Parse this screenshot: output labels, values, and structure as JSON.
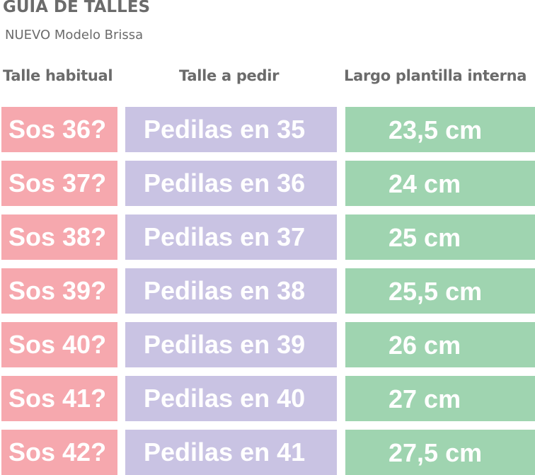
{
  "header": {
    "title": "GUIA DE TALLES",
    "subtitle": "NUEVO Modelo Brissa"
  },
  "columns": {
    "habitual": "Talle habitual",
    "pedir": "Talle a pedir",
    "largo": "Largo plantilla interna"
  },
  "colors": {
    "habitual": "#f6a8ae",
    "pedir": "#c9c3e3",
    "largo": "#9fd4b0",
    "header_text": "#6b6b6b",
    "cell_text": "#ffffff"
  },
  "rows": [
    {
      "habitual": "Sos 36?",
      "pedir": "Pedilas en 35",
      "largo": "23,5 cm"
    },
    {
      "habitual": "Sos 37?",
      "pedir": "Pedilas en 36",
      "largo": "24 cm"
    },
    {
      "habitual": "Sos 38?",
      "pedir": "Pedilas en 37",
      "largo": "25 cm"
    },
    {
      "habitual": "Sos 39?",
      "pedir": "Pedilas en 38",
      "largo": "25,5 cm"
    },
    {
      "habitual": "Sos 40?",
      "pedir": "Pedilas en 39",
      "largo": "26 cm"
    },
    {
      "habitual": "Sos 41?",
      "pedir": "Pedilas en 40",
      "largo": "27 cm"
    },
    {
      "habitual": "Sos 42?",
      "pedir": "Pedilas en 41",
      "largo": "27,5 cm"
    }
  ]
}
